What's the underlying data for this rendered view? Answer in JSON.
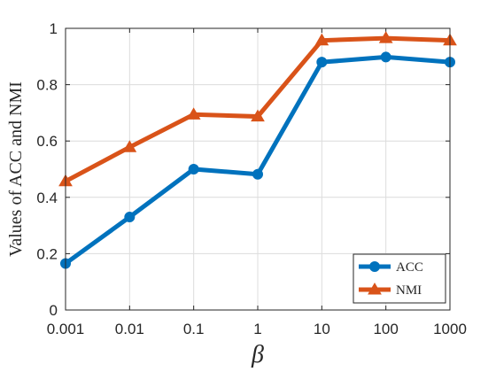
{
  "chart_data": {
    "type": "line",
    "title": "",
    "xlabel": "β",
    "ylabel": "Values of ACC and NMI",
    "categories": [
      "0.001",
      "0.01",
      "0.1",
      "1",
      "10",
      "100",
      "1000"
    ],
    "ylim": [
      0,
      1
    ],
    "yticks": [
      "0",
      "0.2",
      "0.4",
      "0.6",
      "0.8",
      "1"
    ],
    "grid": true,
    "legend_position": "bottom-right",
    "series": [
      {
        "name": "ACC",
        "values": [
          0.165,
          0.33,
          0.5,
          0.482,
          0.88,
          0.898,
          0.88
        ],
        "color": "#0072BD",
        "marker": "circle"
      },
      {
        "name": "NMI",
        "values": [
          0.457,
          0.578,
          0.694,
          0.687,
          0.957,
          0.965,
          0.957
        ],
        "color": "#D95319",
        "marker": "triangle"
      }
    ]
  }
}
